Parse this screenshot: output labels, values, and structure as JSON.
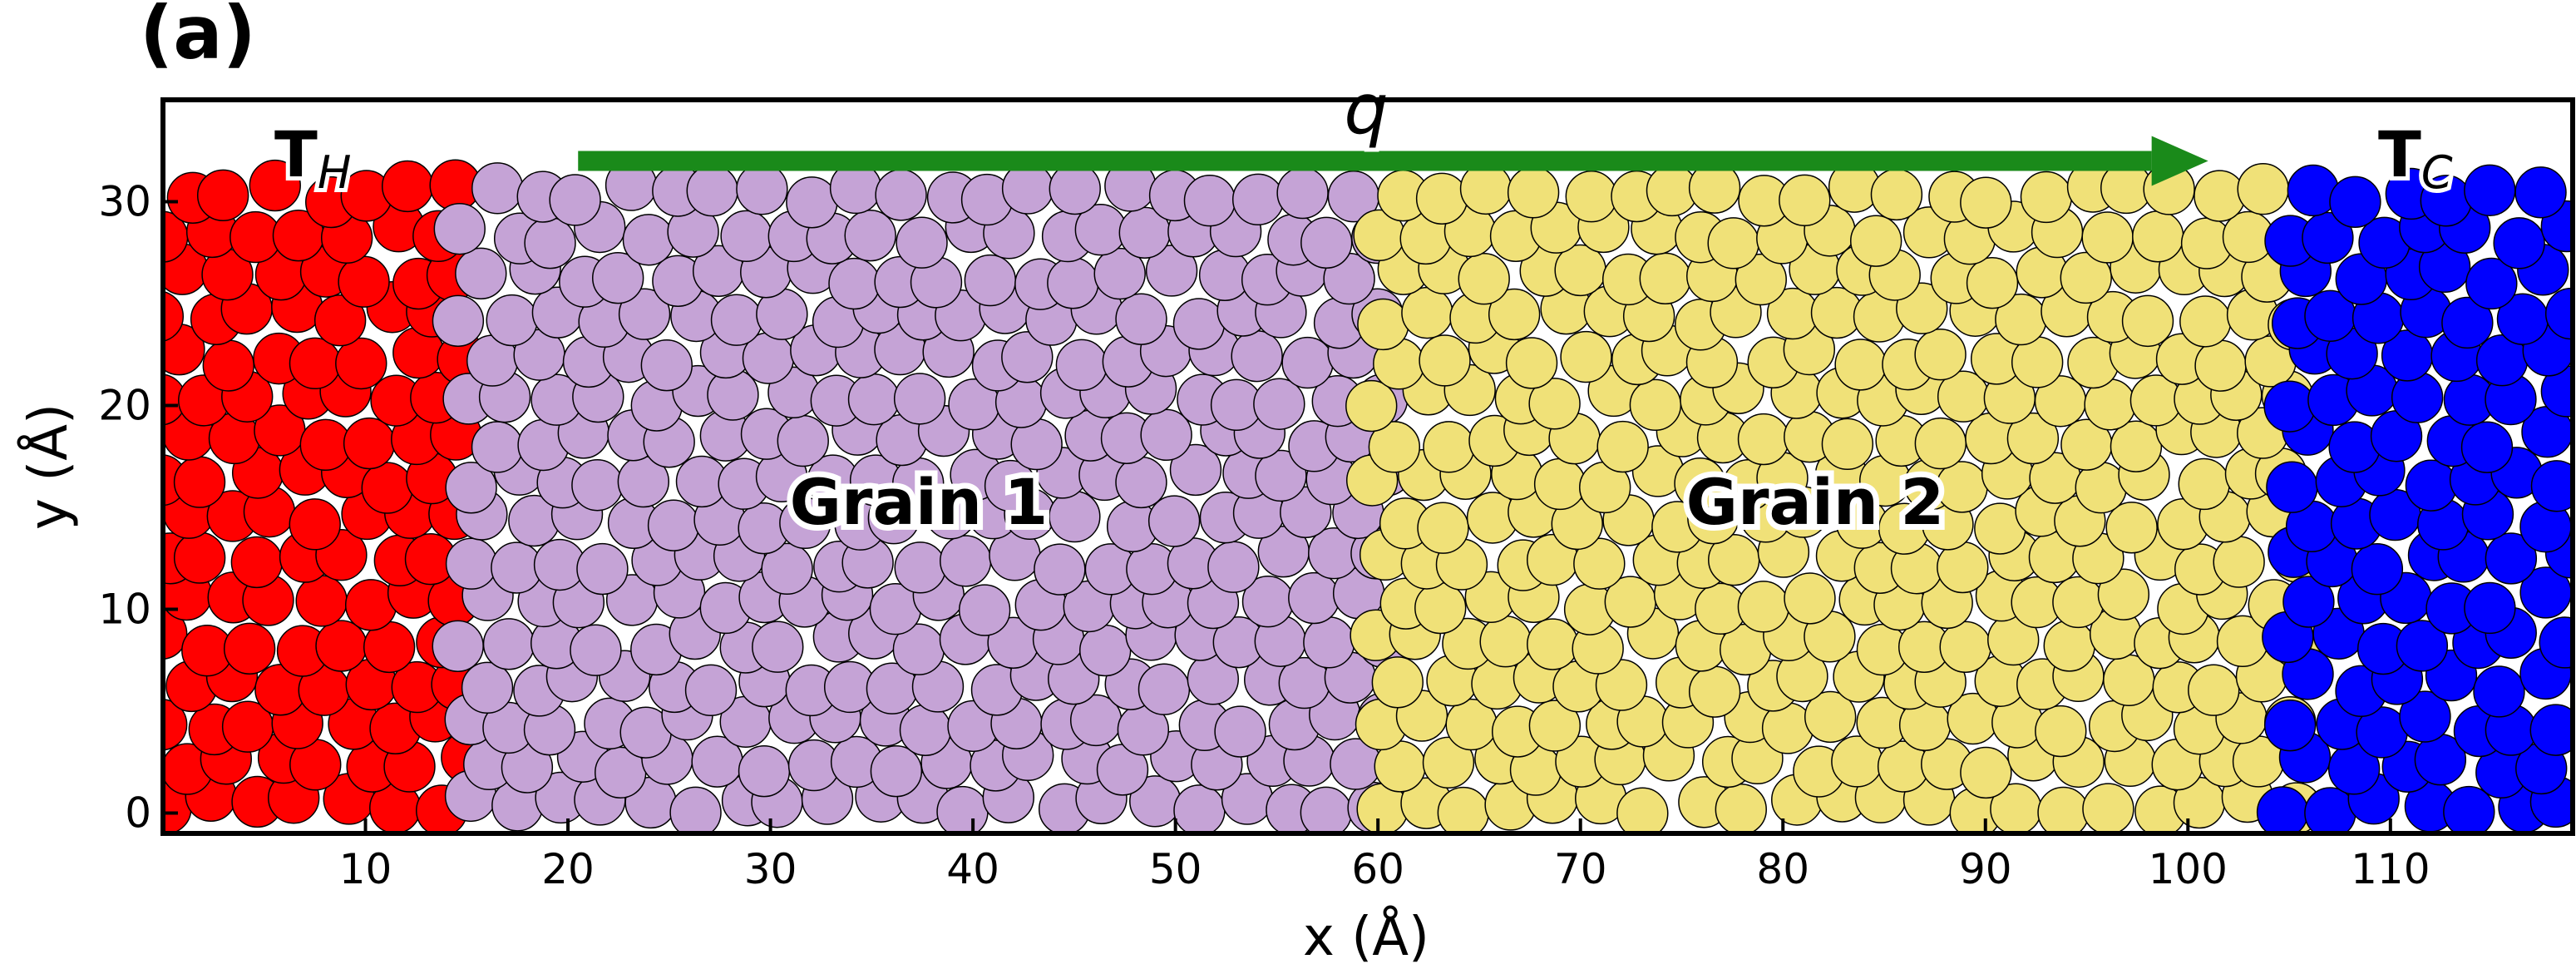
{
  "panel_label": "(a)",
  "labels": {
    "hot": "T",
    "hot_sub": "H",
    "cold": "T",
    "cold_sub": "C",
    "flux": "q",
    "grain1": "Grain 1",
    "grain2": "Grain 2"
  },
  "axes": {
    "xlabel": "x (Å)",
    "ylabel": "y (Å)",
    "xlim": [
      0,
      119
    ],
    "ylim": [
      -1,
      35
    ],
    "xticks": [
      10,
      20,
      30,
      40,
      50,
      60,
      70,
      80,
      90,
      100,
      110
    ],
    "yticks": [
      0,
      10,
      20,
      30
    ]
  },
  "regions": [
    {
      "name": "T_H reservoir",
      "x": [
        0,
        15
      ],
      "color": "#ff0000"
    },
    {
      "name": "Grain 1",
      "x": [
        15,
        60
      ],
      "color": "#c5a3d6"
    },
    {
      "name": "Grain 2",
      "x": [
        60,
        105
      ],
      "color": "#f0e178"
    },
    {
      "name": "T_C reservoir",
      "x": [
        105,
        119
      ],
      "color": "#0000ff"
    }
  ],
  "arrow": {
    "x_start": 20.5,
    "x_end": 101,
    "y": 32,
    "color": "#1a8a1a"
  },
  "atom_diameter": 2.5
}
